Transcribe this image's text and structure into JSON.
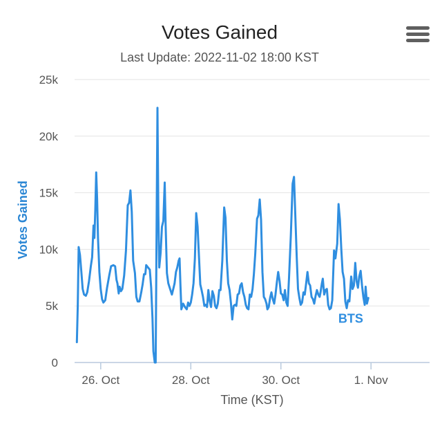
{
  "colors": {
    "series": "#2f8ee0",
    "axis_title": "#2a86d4",
    "grid": "#e3e3e3",
    "axis": "#b8c9dd",
    "tick_text": "#555555",
    "title": "#222222"
  },
  "menu": {
    "icon": "hamburger-menu-icon"
  },
  "chart_data": {
    "type": "line",
    "title": "Votes Gained",
    "subtitle": "Last Update: 2022-11-02 18:00 KST",
    "xlabel": "Time (KST)",
    "ylabel": "Votes Gained",
    "ylim": [
      0,
      25000
    ],
    "y_ticks": [
      0,
      5000,
      10000,
      15000,
      20000,
      25000
    ],
    "y_tick_labels": [
      "0",
      "5k",
      "10k",
      "15k",
      "20k",
      "25k"
    ],
    "x_range_days": [
      -0.58,
      7.3
    ],
    "x_ticks": [
      {
        "label": "26. Oct",
        "day": 0
      },
      {
        "label": "28. Oct",
        "day": 2
      },
      {
        "label": "30. Oct",
        "day": 4
      },
      {
        "label": "1. Nov",
        "day": 6
      }
    ],
    "series": [
      {
        "name": "BTS",
        "points": [
          [
            -0.53,
            1800
          ],
          [
            -0.51,
            5000
          ],
          [
            -0.49,
            10200
          ],
          [
            -0.46,
            9500
          ],
          [
            -0.43,
            8000
          ],
          [
            -0.4,
            6500
          ],
          [
            -0.37,
            6000
          ],
          [
            -0.33,
            5900
          ],
          [
            -0.3,
            6200
          ],
          [
            -0.26,
            7200
          ],
          [
            -0.22,
            8500
          ],
          [
            -0.19,
            9300
          ],
          [
            -0.16,
            12100
          ],
          [
            -0.14,
            11000
          ],
          [
            -0.12,
            13500
          ],
          [
            -0.1,
            16800
          ],
          [
            -0.08,
            14500
          ],
          [
            -0.06,
            11000
          ],
          [
            -0.03,
            8000
          ],
          [
            0.0,
            6500
          ],
          [
            0.03,
            5600
          ],
          [
            0.06,
            5300
          ],
          [
            0.1,
            5500
          ],
          [
            0.14,
            6600
          ],
          [
            0.19,
            7700
          ],
          [
            0.23,
            8500
          ],
          [
            0.28,
            8600
          ],
          [
            0.32,
            8500
          ],
          [
            0.35,
            7300
          ],
          [
            0.37,
            7000
          ],
          [
            0.4,
            6100
          ],
          [
            0.42,
            6700
          ],
          [
            0.45,
            6300
          ],
          [
            0.48,
            6500
          ],
          [
            0.52,
            7700
          ],
          [
            0.56,
            9900
          ],
          [
            0.6,
            13900
          ],
          [
            0.63,
            14100
          ],
          [
            0.66,
            15200
          ],
          [
            0.69,
            13300
          ],
          [
            0.72,
            9000
          ],
          [
            0.76,
            7900
          ],
          [
            0.79,
            5800
          ],
          [
            0.82,
            5400
          ],
          [
            0.86,
            5400
          ],
          [
            0.9,
            6200
          ],
          [
            0.93,
            6900
          ],
          [
            0.96,
            7800
          ],
          [
            0.99,
            7800
          ],
          [
            1.01,
            8600
          ],
          [
            1.05,
            8400
          ],
          [
            1.09,
            8200
          ],
          [
            1.12,
            6600
          ],
          [
            1.15,
            3900
          ],
          [
            1.17,
            1000
          ],
          [
            1.2,
            0
          ],
          [
            1.22,
            0
          ],
          [
            1.24,
            11500
          ],
          [
            1.26,
            22500
          ],
          [
            1.28,
            13000
          ],
          [
            1.3,
            8400
          ],
          [
            1.33,
            9700
          ],
          [
            1.36,
            12000
          ],
          [
            1.39,
            12500
          ],
          [
            1.42,
            15900
          ],
          [
            1.44,
            12200
          ],
          [
            1.47,
            7900
          ],
          [
            1.5,
            7000
          ],
          [
            1.54,
            6500
          ],
          [
            1.58,
            6000
          ],
          [
            1.61,
            6500
          ],
          [
            1.64,
            7000
          ],
          [
            1.67,
            8000
          ],
          [
            1.7,
            8400
          ],
          [
            1.73,
            9000
          ],
          [
            1.75,
            9200
          ],
          [
            1.77,
            6800
          ],
          [
            1.79,
            4700
          ],
          [
            1.83,
            5200
          ],
          [
            1.87,
            4900
          ],
          [
            1.91,
            4700
          ],
          [
            1.94,
            5300
          ],
          [
            1.97,
            5000
          ],
          [
            2.0,
            5300
          ],
          [
            2.03,
            6000
          ],
          [
            2.06,
            7000
          ],
          [
            2.09,
            9200
          ],
          [
            2.12,
            13200
          ],
          [
            2.15,
            12000
          ],
          [
            2.18,
            9500
          ],
          [
            2.21,
            6900
          ],
          [
            2.24,
            6400
          ],
          [
            2.27,
            5800
          ],
          [
            2.3,
            5000
          ],
          [
            2.33,
            5100
          ],
          [
            2.36,
            4900
          ],
          [
            2.39,
            6400
          ],
          [
            2.42,
            5400
          ],
          [
            2.45,
            4900
          ],
          [
            2.48,
            6300
          ],
          [
            2.51,
            5900
          ],
          [
            2.54,
            5000
          ],
          [
            2.57,
            4800
          ],
          [
            2.6,
            5200
          ],
          [
            2.63,
            6400
          ],
          [
            2.66,
            6400
          ],
          [
            2.7,
            9000
          ],
          [
            2.74,
            13700
          ],
          [
            2.77,
            12800
          ],
          [
            2.8,
            9000
          ],
          [
            2.83,
            7000
          ],
          [
            2.86,
            6400
          ],
          [
            2.89,
            5300
          ],
          [
            2.92,
            3800
          ],
          [
            2.95,
            5000
          ],
          [
            2.98,
            5100
          ],
          [
            3.01,
            5000
          ],
          [
            3.04,
            6000
          ],
          [
            3.07,
            6100
          ],
          [
            3.1,
            6800
          ],
          [
            3.13,
            7000
          ],
          [
            3.16,
            6200
          ],
          [
            3.19,
            5800
          ],
          [
            3.22,
            5100
          ],
          [
            3.25,
            4800
          ],
          [
            3.28,
            4700
          ],
          [
            3.31,
            6000
          ],
          [
            3.34,
            5800
          ],
          [
            3.37,
            6500
          ],
          [
            3.4,
            7800
          ],
          [
            3.43,
            9600
          ],
          [
            3.47,
            12700
          ],
          [
            3.5,
            13000
          ],
          [
            3.53,
            14400
          ],
          [
            3.56,
            12600
          ],
          [
            3.59,
            8000
          ],
          [
            3.62,
            5800
          ],
          [
            3.65,
            5600
          ],
          [
            3.68,
            5200
          ],
          [
            3.7,
            4700
          ],
          [
            3.73,
            4900
          ],
          [
            3.76,
            5700
          ],
          [
            3.79,
            6200
          ],
          [
            3.82,
            5600
          ],
          [
            3.85,
            5200
          ],
          [
            3.88,
            6000
          ],
          [
            3.91,
            7100
          ],
          [
            3.94,
            8000
          ],
          [
            3.97,
            7200
          ],
          [
            4.0,
            6100
          ],
          [
            4.03,
            6000
          ],
          [
            4.06,
            5500
          ],
          [
            4.09,
            6400
          ],
          [
            4.12,
            5300
          ],
          [
            4.15,
            5000
          ],
          [
            4.18,
            7500
          ],
          [
            4.22,
            11200
          ],
          [
            4.26,
            15800
          ],
          [
            4.29,
            16400
          ],
          [
            4.32,
            13000
          ],
          [
            4.35,
            9400
          ],
          [
            4.38,
            6500
          ],
          [
            4.41,
            5700
          ],
          [
            4.44,
            5100
          ],
          [
            4.47,
            5300
          ],
          [
            4.5,
            6200
          ],
          [
            4.53,
            6000
          ],
          [
            4.56,
            7000
          ],
          [
            4.59,
            8000
          ],
          [
            4.62,
            7000
          ],
          [
            4.65,
            6800
          ],
          [
            4.68,
            5800
          ],
          [
            4.71,
            5600
          ],
          [
            4.74,
            5200
          ],
          [
            4.77,
            5900
          ],
          [
            4.8,
            6400
          ],
          [
            4.83,
            6000
          ],
          [
            4.86,
            5800
          ],
          [
            4.88,
            6200
          ],
          [
            4.91,
            7000
          ],
          [
            4.93,
            7400
          ],
          [
            4.96,
            6000
          ],
          [
            4.99,
            6400
          ],
          [
            5.02,
            6500
          ],
          [
            5.05,
            5100
          ],
          [
            5.08,
            4700
          ],
          [
            5.11,
            4800
          ],
          [
            5.14,
            5500
          ],
          [
            5.18,
            9900
          ],
          [
            5.21,
            9200
          ],
          [
            5.25,
            10500
          ],
          [
            5.28,
            14000
          ],
          [
            5.31,
            12600
          ],
          [
            5.34,
            10000
          ],
          [
            5.37,
            8000
          ],
          [
            5.4,
            7400
          ],
          [
            5.43,
            5400
          ],
          [
            5.46,
            4800
          ],
          [
            5.49,
            5500
          ],
          [
            5.52,
            5400
          ],
          [
            5.56,
            7600
          ],
          [
            5.59,
            6500
          ],
          [
            5.62,
            6800
          ],
          [
            5.65,
            8800
          ],
          [
            5.68,
            7200
          ],
          [
            5.71,
            6600
          ],
          [
            5.74,
            7600
          ],
          [
            5.77,
            8100
          ],
          [
            5.8,
            6800
          ],
          [
            5.83,
            5800
          ],
          [
            5.86,
            5100
          ],
          [
            5.88,
            6700
          ],
          [
            5.91,
            5200
          ],
          [
            5.94,
            5700
          ]
        ]
      }
    ],
    "series_label": "BTS",
    "series_label_anchor": [
      5.55,
      3500
    ]
  }
}
